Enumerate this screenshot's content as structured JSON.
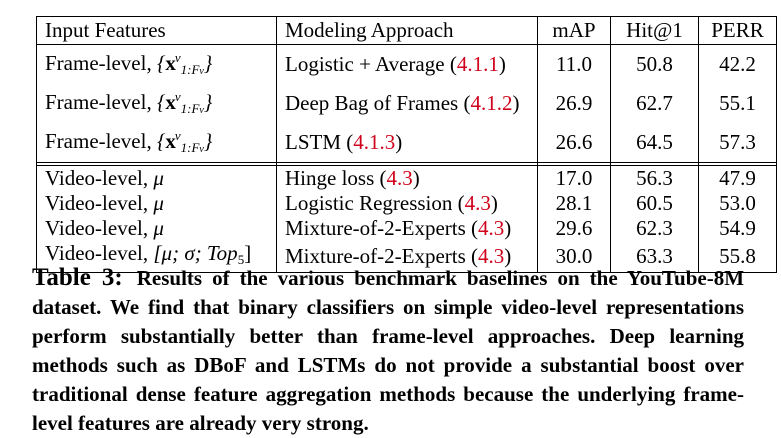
{
  "table": {
    "headers": {
      "input_features": "Input Features",
      "modeling_approach": "Modeling Approach",
      "map": "mAP",
      "hit1": "Hit@1",
      "perr": "PERR"
    },
    "frame_rows": [
      {
        "feature": "Frame-level,",
        "approach": "Logistic + Average",
        "ref": "4.1.1",
        "map": "11.0",
        "hit1": "50.8",
        "perr": "42.2"
      },
      {
        "feature": "Frame-level,",
        "approach": "Deep Bag of Frames",
        "ref": "4.1.2",
        "map": "26.9",
        "hit1": "62.7",
        "perr": "55.1"
      },
      {
        "feature": "Frame-level,",
        "approach": "LSTM",
        "ref": "4.1.3",
        "map": "26.6",
        "hit1": "64.5",
        "perr": "57.3"
      }
    ],
    "frame_math": {
      "vec": "x",
      "sup": "v",
      "sub": "1:F",
      "subsub": "v"
    },
    "video_rows": [
      {
        "feature": "Video-level,",
        "math": "μ",
        "approach": "Hinge loss",
        "ref": "4.3",
        "map": "17.0",
        "hit1": "56.3",
        "perr": "47.9"
      },
      {
        "feature": "Video-level,",
        "math": "μ",
        "approach": "Logistic Regression",
        "ref": "4.3",
        "map": "28.1",
        "hit1": "60.5",
        "perr": "53.0"
      },
      {
        "feature": "Video-level,",
        "math": "μ",
        "approach": "Mixture-of-2-Experts",
        "ref": "4.3",
        "map": "29.6",
        "hit1": "62.3",
        "perr": "54.9"
      },
      {
        "feature": "Video-level,",
        "math": "[μ; σ; Top",
        "math_sub": "5",
        "math_end": "]",
        "approach": "Mixture-of-2-Experts",
        "ref": "4.3",
        "map": "30.0",
        "hit1": "63.3",
        "perr": "55.8"
      }
    ]
  },
  "caption": {
    "label": "Table 3:",
    "text": "Results of the various benchmark baselines on the YouTube-8M dataset. We find that binary classifiers on simple video-level representations perform substantially better than frame-level approaches. Deep learning methods such as DBoF and LSTMs do not provide a substantial boost over traditional dense feature aggregation methods because the underlying frame-level features are already very strong."
  }
}
